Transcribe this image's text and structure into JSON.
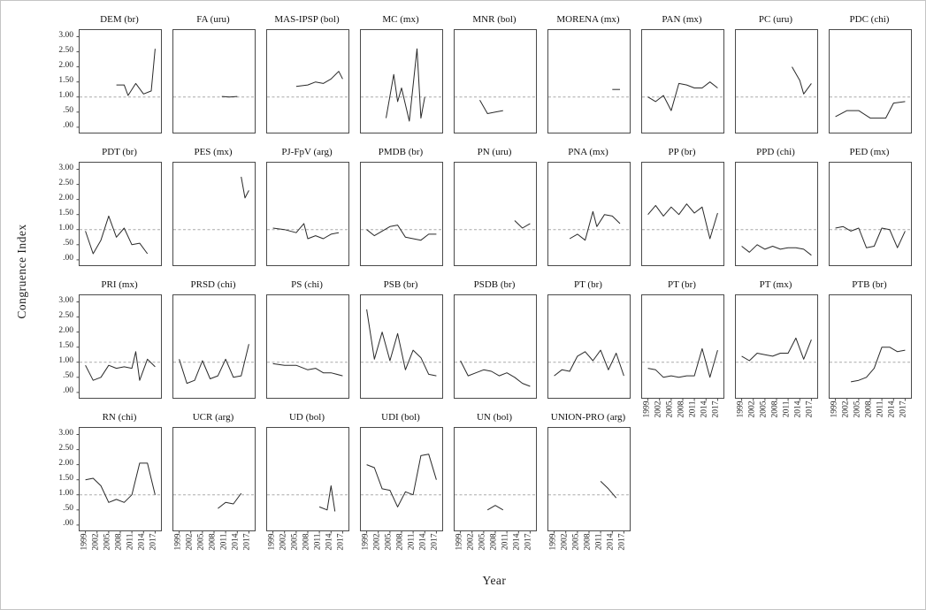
{
  "chart_data": {
    "type": "line",
    "ylabel": "Congruence Index",
    "xlabel": "Year",
    "ylim": [
      0,
      3.0
    ],
    "yticks": [
      "3.00",
      "2.50",
      "2.00",
      "1.50",
      "1.00",
      ".50",
      ".00"
    ],
    "ytick_values": [
      3.0,
      2.5,
      2.0,
      1.5,
      1.0,
      0.5,
      0.0
    ],
    "xticks": [
      1999,
      2002,
      2005,
      2008,
      2011,
      2014,
      2017
    ],
    "xlim": [
      1998,
      2018
    ],
    "reference_line": 1.0,
    "grid": false,
    "legend": "none",
    "layout": {
      "rows": 4,
      "columns": 9
    },
    "colors": {
      "line": "#2a2a2a",
      "reference": "#aaaaaa",
      "frame": "#4a4a4a"
    },
    "panels": [
      {
        "name": "DEM (br)",
        "x": [
          2007,
          2009,
          2010,
          2012,
          2014,
          2016,
          2017
        ],
        "y": [
          1.4,
          1.4,
          1.05,
          1.45,
          1.1,
          1.2,
          2.6
        ]
      },
      {
        "name": "FA (uru)",
        "x": [
          2010,
          2012,
          2014
        ],
        "y": [
          1.02,
          1.0,
          1.02
        ]
      },
      {
        "name": "MAS-IPSP (bol)",
        "x": [
          2005,
          2008,
          2010,
          2012,
          2014,
          2016,
          2017
        ],
        "y": [
          1.35,
          1.4,
          1.5,
          1.45,
          1.6,
          1.85,
          1.6
        ]
      },
      {
        "name": "MC (mx)",
        "x": [
          2004,
          2006,
          2007,
          2008,
          2010,
          2012,
          2013,
          2014
        ],
        "y": [
          0.3,
          1.75,
          0.85,
          1.3,
          0.2,
          2.6,
          0.3,
          1.0
        ]
      },
      {
        "name": "MNR (bol)",
        "x": [
          2004,
          2006,
          2008,
          2010
        ],
        "y": [
          0.9,
          0.45,
          0.5,
          0.55
        ]
      },
      {
        "name": "MORENA (mx)",
        "x": [
          2014,
          2016
        ],
        "y": [
          1.25,
          1.25
        ]
      },
      {
        "name": "PAN (mx)",
        "x": [
          1999,
          2001,
          2003,
          2005,
          2007,
          2009,
          2011,
          2013,
          2015,
          2017
        ],
        "y": [
          1.0,
          0.85,
          1.05,
          0.55,
          1.45,
          1.4,
          1.3,
          1.3,
          1.5,
          1.3
        ]
      },
      {
        "name": "PC (uru)",
        "x": [
          2012,
          2014,
          2015,
          2017
        ],
        "y": [
          2.0,
          1.55,
          1.1,
          1.45
        ]
      },
      {
        "name": "PDC (chi)",
        "x": [
          1999,
          2002,
          2005,
          2008,
          2010,
          2012,
          2014,
          2017
        ],
        "y": [
          0.35,
          0.55,
          0.55,
          0.3,
          0.3,
          0.3,
          0.8,
          0.85
        ]
      },
      {
        "name": "PDT (br)",
        "x": [
          1999,
          2001,
          2003,
          2005,
          2007,
          2009,
          2011,
          2013,
          2015
        ],
        "y": [
          0.95,
          0.2,
          0.65,
          1.45,
          0.75,
          1.05,
          0.5,
          0.55,
          0.2
        ]
      },
      {
        "name": "PES (mx)",
        "x": [
          2015,
          2016,
          2017
        ],
        "y": [
          2.75,
          2.05,
          2.3
        ]
      },
      {
        "name": "PJ-FpV (arg)",
        "x": [
          1999,
          2002,
          2005,
          2007,
          2008,
          2010,
          2012,
          2014,
          2016
        ],
        "y": [
          1.05,
          1.0,
          0.9,
          1.2,
          0.7,
          0.8,
          0.7,
          0.85,
          0.9
        ]
      },
      {
        "name": "PMDB (br)",
        "x": [
          1999,
          2001,
          2003,
          2005,
          2007,
          2009,
          2011,
          2013,
          2015,
          2017
        ],
        "y": [
          1.0,
          0.8,
          0.95,
          1.1,
          1.15,
          0.75,
          0.7,
          0.65,
          0.85,
          0.85
        ]
      },
      {
        "name": "PN (uru)",
        "x": [
          2013,
          2015,
          2017
        ],
        "y": [
          1.3,
          1.05,
          1.2
        ]
      },
      {
        "name": "PNA (mx)",
        "x": [
          2003,
          2005,
          2007,
          2009,
          2010,
          2012,
          2014,
          2016
        ],
        "y": [
          0.7,
          0.85,
          0.65,
          1.6,
          1.1,
          1.5,
          1.45,
          1.2
        ]
      },
      {
        "name": "PP (br)",
        "x": [
          1999,
          2001,
          2003,
          2005,
          2007,
          2009,
          2011,
          2013,
          2015,
          2017
        ],
        "y": [
          1.5,
          1.8,
          1.45,
          1.75,
          1.5,
          1.85,
          1.55,
          1.75,
          0.7,
          1.55
        ]
      },
      {
        "name": "PPD (chi)",
        "x": [
          1999,
          2001,
          2003,
          2005,
          2007,
          2009,
          2011,
          2013,
          2015,
          2017
        ],
        "y": [
          0.45,
          0.25,
          0.5,
          0.35,
          0.45,
          0.35,
          0.4,
          0.4,
          0.35,
          0.15
        ]
      },
      {
        "name": "PED (mx)",
        "x": [
          1999,
          2001,
          2003,
          2005,
          2007,
          2009,
          2011,
          2013,
          2015,
          2017
        ],
        "y": [
          1.05,
          1.1,
          0.95,
          1.05,
          0.4,
          0.45,
          1.05,
          1.0,
          0.4,
          0.95
        ]
      },
      {
        "name": "PRI (mx)",
        "x": [
          1999,
          2001,
          2003,
          2005,
          2007,
          2009,
          2011,
          2012,
          2013,
          2015,
          2017
        ],
        "y": [
          0.9,
          0.4,
          0.5,
          0.9,
          0.8,
          0.85,
          0.8,
          1.35,
          0.4,
          1.1,
          0.85
        ]
      },
      {
        "name": "PRSD (chi)",
        "x": [
          1999,
          2001,
          2003,
          2005,
          2007,
          2009,
          2011,
          2013,
          2015,
          2017
        ],
        "y": [
          1.1,
          0.3,
          0.4,
          1.05,
          0.45,
          0.55,
          1.1,
          0.5,
          0.55,
          1.6
        ]
      },
      {
        "name": "PS (chi)",
        "x": [
          1999,
          2002,
          2005,
          2008,
          2010,
          2012,
          2014,
          2017
        ],
        "y": [
          0.95,
          0.9,
          0.9,
          0.75,
          0.8,
          0.65,
          0.65,
          0.55
        ]
      },
      {
        "name": "PSB (br)",
        "x": [
          1999,
          2001,
          2003,
          2005,
          2007,
          2009,
          2011,
          2013,
          2015,
          2017
        ],
        "y": [
          2.75,
          1.1,
          2.0,
          1.05,
          1.95,
          0.75,
          1.4,
          1.15,
          0.6,
          0.55
        ]
      },
      {
        "name": "PSDB (br)",
        "x": [
          1999,
          2001,
          2003,
          2005,
          2007,
          2009,
          2011,
          2013,
          2015,
          2017
        ],
        "y": [
          1.05,
          0.55,
          0.65,
          0.75,
          0.7,
          0.55,
          0.65,
          0.5,
          0.3,
          0.2
        ]
      },
      {
        "name": "PT (br)",
        "x": [
          1999,
          2001,
          2003,
          2005,
          2007,
          2009,
          2011,
          2013,
          2015,
          2017
        ],
        "y": [
          0.55,
          0.75,
          0.7,
          1.2,
          1.35,
          1.05,
          1.4,
          0.75,
          1.3,
          0.55
        ]
      },
      {
        "name": "PT (br)",
        "x": [
          1999,
          2001,
          2003,
          2005,
          2007,
          2009,
          2011,
          2013,
          2015,
          2017
        ],
        "y": [
          0.8,
          0.75,
          0.5,
          0.55,
          0.5,
          0.55,
          0.55,
          1.45,
          0.5,
          1.4
        ]
      },
      {
        "name": "PT (mx)",
        "x": [
          1999,
          2001,
          2003,
          2005,
          2007,
          2009,
          2011,
          2013,
          2015,
          2017
        ],
        "y": [
          1.2,
          1.05,
          1.3,
          1.25,
          1.2,
          1.3,
          1.3,
          1.8,
          1.1,
          1.75
        ]
      },
      {
        "name": "PTB (br)",
        "x": [
          2003,
          2005,
          2007,
          2009,
          2011,
          2013,
          2015,
          2017
        ],
        "y": [
          0.35,
          0.4,
          0.5,
          0.8,
          1.5,
          1.5,
          1.35,
          1.4
        ]
      },
      {
        "name": "RN (chi)",
        "x": [
          1999,
          2001,
          2003,
          2005,
          2007,
          2009,
          2011,
          2013,
          2015,
          2017
        ],
        "y": [
          1.5,
          1.55,
          1.3,
          0.75,
          0.85,
          0.75,
          1.0,
          2.05,
          2.05,
          1.0
        ]
      },
      {
        "name": "UCR (arg)",
        "x": [
          2009,
          2011,
          2013,
          2015
        ],
        "y": [
          0.55,
          0.75,
          0.7,
          1.05
        ]
      },
      {
        "name": "UD (bol)",
        "x": [
          2011,
          2013,
          2014,
          2015
        ],
        "y": [
          0.6,
          0.5,
          1.3,
          0.45
        ]
      },
      {
        "name": "UDI (bol)",
        "x": [
          1999,
          2001,
          2003,
          2005,
          2007,
          2009,
          2011,
          2013,
          2015,
          2017
        ],
        "y": [
          2.0,
          1.9,
          1.2,
          1.15,
          0.6,
          1.1,
          1.0,
          2.3,
          2.35,
          1.5
        ]
      },
      {
        "name": "UN (bol)",
        "x": [
          2006,
          2008,
          2010
        ],
        "y": [
          0.5,
          0.65,
          0.5
        ]
      },
      {
        "name": "UNION-PRO (arg)",
        "x": [
          2011,
          2013,
          2015
        ],
        "y": [
          1.45,
          1.2,
          0.9
        ]
      }
    ]
  }
}
